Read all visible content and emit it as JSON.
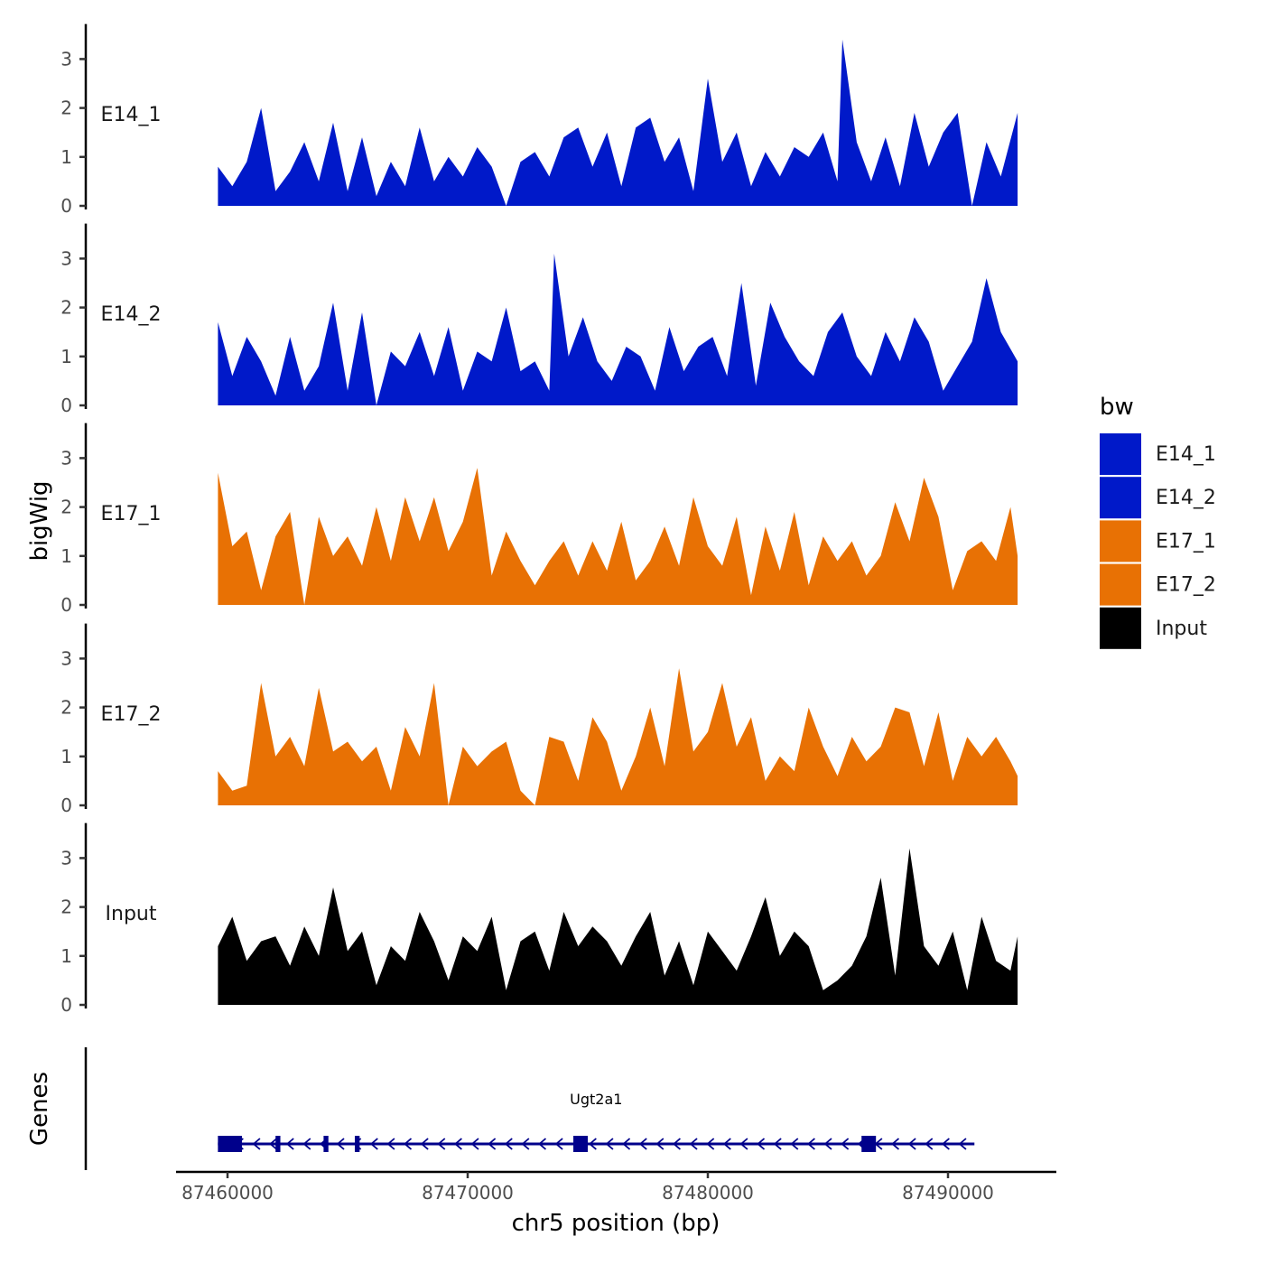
{
  "chart_data": {
    "type": "area",
    "chromosome": "chr5",
    "xlabel": "chr5 position (bp)",
    "ylabel": "bigWig",
    "xlim": [
      87456500,
      87493500
    ],
    "ylim": [
      0,
      3.6
    ],
    "x_ticks": [
      87460000,
      87470000,
      87480000,
      87490000
    ],
    "x_tick_labels": [
      "87460000",
      "87470000",
      "87480000",
      "87490000"
    ],
    "y_ticks": [
      0,
      1,
      2,
      3
    ],
    "y_tick_labels": [
      "0",
      "1",
      "2",
      "3"
    ],
    "signal_start": 87459600,
    "signal_end": 87492900,
    "legend": {
      "title": "bw",
      "position": "right",
      "entries": [
        {
          "name": "E14_1",
          "color": "#0019C9"
        },
        {
          "name": "E14_2",
          "color": "#0019C9"
        },
        {
          "name": "E17_1",
          "color": "#E87104"
        },
        {
          "name": "E17_2",
          "color": "#E87104"
        },
        {
          "name": "Input",
          "color": "#000000"
        }
      ]
    },
    "series": [
      {
        "name": "E14_1",
        "color": "#0019C9",
        "label": "E14_1",
        "x": [
          87459600,
          87460200,
          87460800,
          87461400,
          87462000,
          87462600,
          87463200,
          87463800,
          87464400,
          87465000,
          87465600,
          87466200,
          87466800,
          87467400,
          87468000,
          87468600,
          87469200,
          87469800,
          87470400,
          87471000,
          87471600,
          87472200,
          87472800,
          87473400,
          87474000,
          87474600,
          87475200,
          87475800,
          87476400,
          87477000,
          87477600,
          87478200,
          87478800,
          87479400,
          87480000,
          87480600,
          87481200,
          87481800,
          87482400,
          87483000,
          87483600,
          87484200,
          87484800,
          87485400,
          87485600,
          87486200,
          87486800,
          87487400,
          87488000,
          87488600,
          87489200,
          87489800,
          87490400,
          87491000,
          87491600,
          87492200,
          87492900
        ],
        "values": [
          0.8,
          0.4,
          0.9,
          2.0,
          0.3,
          0.7,
          1.3,
          0.5,
          1.7,
          0.3,
          1.4,
          0.2,
          0.9,
          0.4,
          1.6,
          0.5,
          1.0,
          0.6,
          1.2,
          0.8,
          0.0,
          0.9,
          1.1,
          0.6,
          1.4,
          1.6,
          0.8,
          1.5,
          0.4,
          1.6,
          1.8,
          0.9,
          1.4,
          0.3,
          2.6,
          0.9,
          1.5,
          0.4,
          1.1,
          0.6,
          1.2,
          1.0,
          1.5,
          0.5,
          3.4,
          1.3,
          0.5,
          1.4,
          0.4,
          1.9,
          0.8,
          1.5,
          1.9,
          0.0,
          1.3,
          0.6,
          1.9
        ]
      },
      {
        "name": "E14_2",
        "color": "#0019C9",
        "label": "E14_2",
        "x": [
          87459600,
          87460200,
          87460800,
          87461400,
          87462000,
          87462600,
          87463200,
          87463800,
          87464400,
          87465000,
          87465600,
          87466200,
          87466800,
          87467400,
          87468000,
          87468600,
          87469200,
          87469800,
          87470400,
          87471000,
          87471600,
          87472200,
          87472800,
          87473400,
          87473600,
          87474200,
          87474800,
          87475400,
          87476000,
          87476600,
          87477200,
          87477800,
          87478400,
          87479000,
          87479600,
          87480200,
          87480800,
          87481400,
          87482000,
          87482600,
          87483200,
          87483800,
          87484400,
          87485000,
          87485600,
          87486200,
          87486800,
          87487400,
          87488000,
          87488600,
          87489200,
          87489800,
          87490400,
          87491000,
          87491600,
          87492200,
          87492900
        ],
        "values": [
          1.7,
          0.6,
          1.4,
          0.9,
          0.2,
          1.4,
          0.3,
          0.8,
          2.1,
          0.3,
          1.9,
          0.0,
          1.1,
          0.8,
          1.5,
          0.6,
          1.6,
          0.3,
          1.1,
          0.9,
          2.0,
          0.7,
          0.9,
          0.3,
          3.1,
          1.0,
          1.8,
          0.9,
          0.5,
          1.2,
          1.0,
          0.3,
          1.6,
          0.7,
          1.2,
          1.4,
          0.6,
          2.5,
          0.4,
          2.1,
          1.4,
          0.9,
          0.6,
          1.5,
          1.9,
          1.0,
          0.6,
          1.5,
          0.9,
          1.8,
          1.3,
          0.3,
          0.8,
          1.3,
          2.6,
          1.5,
          0.9
        ]
      },
      {
        "name": "E17_1",
        "color": "#E87104",
        "label": "E17_1",
        "x": [
          87459600,
          87460200,
          87460800,
          87461400,
          87462000,
          87462600,
          87463200,
          87463800,
          87464400,
          87465000,
          87465600,
          87466200,
          87466800,
          87467400,
          87468000,
          87468600,
          87469200,
          87469800,
          87470400,
          87471000,
          87471600,
          87472200,
          87472800,
          87473400,
          87474000,
          87474600,
          87475200,
          87475800,
          87476400,
          87477000,
          87477600,
          87478200,
          87478800,
          87479400,
          87480000,
          87480600,
          87481200,
          87481800,
          87482400,
          87483000,
          87483600,
          87484200,
          87484800,
          87485400,
          87486000,
          87486600,
          87487200,
          87487800,
          87488400,
          87489000,
          87489600,
          87490200,
          87490800,
          87491400,
          87492000,
          87492600,
          87492900
        ],
        "values": [
          2.7,
          1.2,
          1.5,
          0.3,
          1.4,
          1.9,
          0.0,
          1.8,
          1.0,
          1.4,
          0.8,
          2.0,
          0.9,
          2.2,
          1.3,
          2.2,
          1.1,
          1.7,
          2.8,
          0.6,
          1.5,
          0.9,
          0.4,
          0.9,
          1.3,
          0.6,
          1.3,
          0.7,
          1.7,
          0.5,
          0.9,
          1.6,
          0.8,
          2.2,
          1.2,
          0.8,
          1.8,
          0.2,
          1.6,
          0.7,
          1.9,
          0.4,
          1.4,
          0.9,
          1.3,
          0.6,
          1.0,
          2.1,
          1.3,
          2.6,
          1.8,
          0.3,
          1.1,
          1.3,
          0.9,
          2.0,
          1.0
        ]
      },
      {
        "name": "E17_2",
        "color": "#E87104",
        "label": "E17_2",
        "x": [
          87459600,
          87460200,
          87460800,
          87461400,
          87462000,
          87462600,
          87463200,
          87463800,
          87464400,
          87465000,
          87465600,
          87466200,
          87466800,
          87467400,
          87468000,
          87468600,
          87469200,
          87469800,
          87470400,
          87471000,
          87471600,
          87472200,
          87472800,
          87473400,
          87474000,
          87474600,
          87475200,
          87475800,
          87476400,
          87477000,
          87477600,
          87478200,
          87478800,
          87479400,
          87480000,
          87480600,
          87481200,
          87481800,
          87482400,
          87483000,
          87483600,
          87484200,
          87484800,
          87485400,
          87486000,
          87486600,
          87487200,
          87487800,
          87488400,
          87489000,
          87489600,
          87490200,
          87490800,
          87491400,
          87492000,
          87492600,
          87492900
        ],
        "values": [
          0.7,
          0.3,
          0.4,
          2.5,
          1.0,
          1.4,
          0.8,
          2.4,
          1.1,
          1.3,
          0.9,
          1.2,
          0.3,
          1.6,
          1.0,
          2.5,
          0.0,
          1.2,
          0.8,
          1.1,
          1.3,
          0.3,
          0.0,
          1.4,
          1.3,
          0.5,
          1.8,
          1.3,
          0.3,
          1.0,
          2.0,
          0.8,
          2.8,
          1.1,
          1.5,
          2.5,
          1.2,
          1.8,
          0.5,
          1.0,
          0.7,
          2.0,
          1.2,
          0.6,
          1.4,
          0.9,
          1.2,
          2.0,
          1.9,
          0.8,
          1.9,
          0.5,
          1.4,
          1.0,
          1.4,
          0.9,
          0.6
        ]
      },
      {
        "name": "Input",
        "color": "#000000",
        "label": "Input",
        "x": [
          87459600,
          87460200,
          87460800,
          87461400,
          87462000,
          87462600,
          87463200,
          87463800,
          87464400,
          87465000,
          87465600,
          87466200,
          87466800,
          87467400,
          87468000,
          87468600,
          87469200,
          87469800,
          87470400,
          87471000,
          87471600,
          87472200,
          87472800,
          87473400,
          87474000,
          87474600,
          87475200,
          87475800,
          87476400,
          87477000,
          87477600,
          87478200,
          87478800,
          87479400,
          87480000,
          87480600,
          87481200,
          87481800,
          87482400,
          87483000,
          87483600,
          87484200,
          87484800,
          87485400,
          87486000,
          87486600,
          87487200,
          87487800,
          87488400,
          87489000,
          87489600,
          87490200,
          87490800,
          87491400,
          87492000,
          87492600,
          87492900
        ],
        "values": [
          1.2,
          1.8,
          0.9,
          1.3,
          1.4,
          0.8,
          1.6,
          1.0,
          2.4,
          1.1,
          1.5,
          0.4,
          1.2,
          0.9,
          1.9,
          1.3,
          0.5,
          1.4,
          1.1,
          1.8,
          0.3,
          1.3,
          1.5,
          0.7,
          1.9,
          1.2,
          1.6,
          1.3,
          0.8,
          1.4,
          1.9,
          0.6,
          1.3,
          0.4,
          1.5,
          1.1,
          0.7,
          1.4,
          2.2,
          1.0,
          1.5,
          1.2,
          0.3,
          0.5,
          0.8,
          1.4,
          2.6,
          0.6,
          3.2,
          1.2,
          0.8,
          1.5,
          0.3,
          1.8,
          0.9,
          0.7,
          1.4
        ]
      }
    ],
    "gene_track": {
      "title": "Genes",
      "gene": "Ugt2a1",
      "color": "#00008B",
      "strand": "-",
      "start": 87459600,
      "end": 87491100,
      "exons": [
        [
          87459600,
          87460600
        ],
        [
          87462000,
          87462200
        ],
        [
          87464000,
          87464200
        ],
        [
          87465300,
          87465500
        ],
        [
          87474400,
          87475000
        ],
        [
          87486400,
          87487000
        ]
      ]
    }
  }
}
